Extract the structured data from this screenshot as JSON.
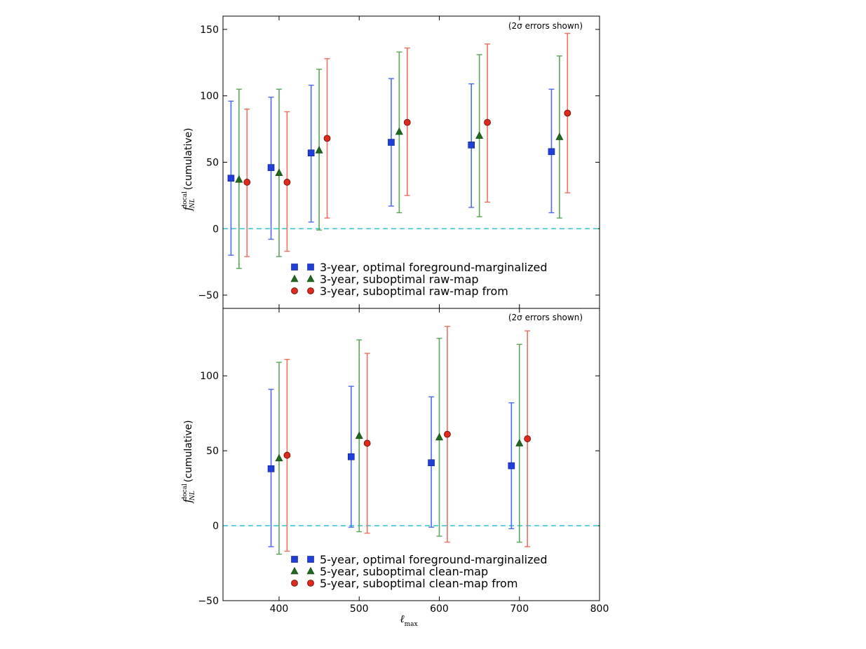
{
  "chart_data": [
    {
      "type": "scatter",
      "panel": "top",
      "title": "",
      "annotation": "(2σ errors shown)",
      "xlabel": "",
      "ylabel_main": "f",
      "ylabel_sup": "local",
      "ylabel_sub": "NL",
      "ylabel_suffix": "(cumulative)",
      "xlim": [
        330,
        800
      ],
      "ylim": [
        -60,
        160
      ],
      "yticks": [
        -50,
        0,
        50,
        100,
        150
      ],
      "reference_line": 0,
      "series": [
        {
          "name": "3-year, optimal foreground-marginalized",
          "marker": "square",
          "color": "#1f3fd9",
          "errcolor": "#4a6cf0",
          "x": [
            340,
            390,
            440,
            540,
            640,
            740
          ],
          "y": [
            38,
            46,
            57,
            65,
            63,
            58
          ],
          "err_low": [
            -20,
            -8,
            5,
            17,
            16,
            12
          ],
          "err_high": [
            96,
            99,
            108,
            113,
            109,
            105
          ]
        },
        {
          "name": "3-year, suboptimal raw-map",
          "marker": "triangle",
          "color": "#1e6b1e",
          "errcolor": "#59a859",
          "x": [
            350,
            400,
            450,
            550,
            650,
            750
          ],
          "y": [
            37,
            42,
            59,
            73,
            70,
            69
          ],
          "err_low": [
            -30,
            -21,
            -1,
            12,
            9,
            8
          ],
          "err_high": [
            105,
            105,
            120,
            133,
            131,
            130
          ]
        },
        {
          "name": "3-year, suboptimal raw-map from",
          "marker": "circle",
          "color": "#e02a1a",
          "errcolor": "#f07060",
          "x": [
            360,
            410,
            460,
            560,
            660,
            760
          ],
          "y": [
            35,
            35,
            68,
            80,
            80,
            87
          ],
          "err_low": [
            -21,
            -17,
            8,
            25,
            20,
            27
          ],
          "err_high": [
            90,
            88,
            128,
            136,
            139,
            147
          ]
        }
      ]
    },
    {
      "type": "scatter",
      "panel": "bottom",
      "title": "",
      "annotation": "(2σ errors shown)",
      "xlabel_main": "ℓ",
      "xlabel_sub": "max",
      "ylabel_main": "f",
      "ylabel_sup": "local",
      "ylabel_sub": "NL",
      "ylabel_suffix": "(cumulative)",
      "xlim": [
        330,
        800
      ],
      "xticks": [
        400,
        500,
        600,
        700,
        800
      ],
      "ylim": [
        -50,
        145
      ],
      "yticks": [
        -50,
        0,
        50,
        100
      ],
      "reference_line": 0,
      "series": [
        {
          "name": "5-year, optimal foreground-marginalized",
          "marker": "square",
          "color": "#1f3fd9",
          "errcolor": "#4a6cf0",
          "x": [
            390,
            490,
            590,
            690
          ],
          "y": [
            38,
            46,
            42,
            40
          ],
          "err_low": [
            -14,
            -1,
            -1,
            -2
          ],
          "err_high": [
            91,
            93,
            86,
            82
          ]
        },
        {
          "name": "5-year, suboptimal clean-map",
          "marker": "triangle",
          "color": "#1e6b1e",
          "errcolor": "#59a859",
          "x": [
            400,
            500,
            600,
            700
          ],
          "y": [
            45,
            60,
            59,
            55
          ],
          "err_low": [
            -19,
            -4,
            -7,
            -11
          ],
          "err_high": [
            109,
            124,
            125,
            121
          ]
        },
        {
          "name": "5-year, suboptimal clean-map from",
          "marker": "circle",
          "color": "#e02a1a",
          "errcolor": "#f07060",
          "x": [
            410,
            510,
            610,
            710
          ],
          "y": [
            47,
            55,
            61,
            58
          ],
          "err_low": [
            -17,
            -5,
            -11,
            -14
          ],
          "err_high": [
            111,
            115,
            133,
            130
          ]
        }
      ]
    }
  ]
}
